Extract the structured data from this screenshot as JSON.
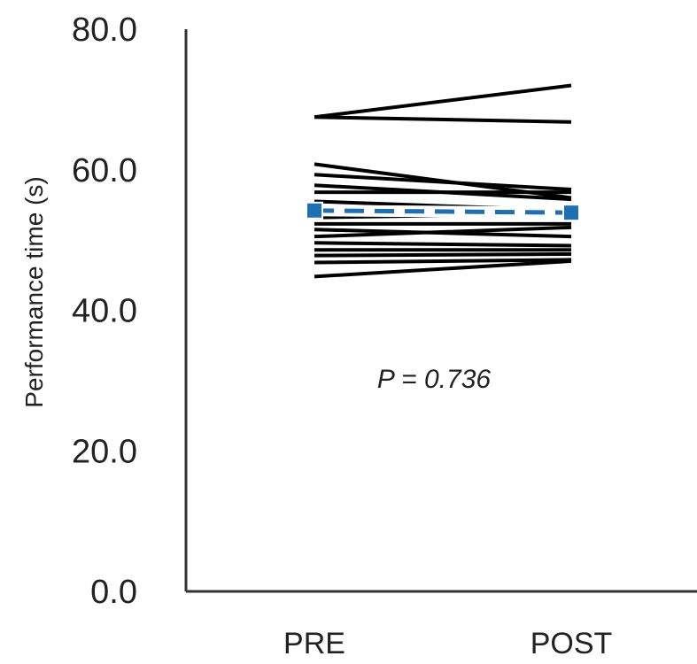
{
  "chart_data": {
    "type": "line",
    "ylabel": "Performance time (s)",
    "xlabel": "",
    "ylim": [
      0,
      80
    ],
    "y_ticks": [
      "0.0",
      "20.0",
      "40.0",
      "60.0",
      "80.0"
    ],
    "categories": [
      "PRE",
      "POST"
    ],
    "annotation": "P = 0.736",
    "individual_series": [
      [
        67.5,
        72.0
      ],
      [
        67.5,
        66.8
      ],
      [
        60.8,
        56.0
      ],
      [
        59.3,
        57.2
      ],
      [
        57.8,
        55.8
      ],
      [
        56.8,
        56.8
      ],
      [
        55.5,
        54.2
      ],
      [
        53.2,
        53.8
      ],
      [
        52.3,
        52.3
      ],
      [
        51.5,
        50.5
      ],
      [
        50.5,
        51.8
      ],
      [
        49.6,
        49.2
      ],
      [
        48.6,
        48.6
      ],
      [
        47.8,
        48.0
      ],
      [
        46.8,
        47.2
      ],
      [
        44.8,
        47.0
      ]
    ],
    "mean_series": {
      "values": [
        54.2,
        53.9
      ],
      "color": "#1f6fb5"
    },
    "grid": false,
    "legend": "none"
  }
}
